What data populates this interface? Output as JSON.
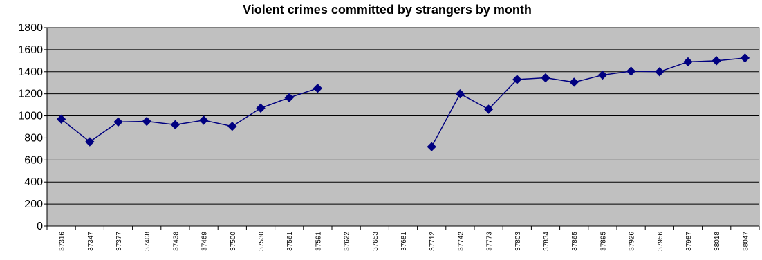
{
  "chart_data": {
    "type": "line",
    "title": "Violent crimes committed by strangers by month",
    "xlabel": "",
    "ylabel": "",
    "ylim": [
      0,
      1800
    ],
    "yticks": [
      0,
      200,
      400,
      600,
      800,
      1000,
      1200,
      1400,
      1600,
      1800
    ],
    "grid": true,
    "legend": "none",
    "categories": [
      "37316",
      "37347",
      "37377",
      "37408",
      "37438",
      "37469",
      "37500",
      "37530",
      "37561",
      "37591",
      "37622",
      "37653",
      "37681",
      "37712",
      "37742",
      "37773",
      "37803",
      "37834",
      "37865",
      "37895",
      "37926",
      "37956",
      "37987",
      "38018",
      "38047"
    ],
    "series": [
      {
        "values": [
          970,
          765,
          945,
          950,
          920,
          960,
          905,
          1070,
          1165,
          1250,
          null,
          null,
          null,
          720,
          1200,
          1060,
          1330,
          1345,
          1305,
          1370,
          1405,
          1400,
          1490,
          1500,
          1525
        ]
      }
    ],
    "colors": {
      "plot_background": "#c0c0c0",
      "series_line": "#000080",
      "gridline": "#000000"
    },
    "marker": "diamond"
  }
}
